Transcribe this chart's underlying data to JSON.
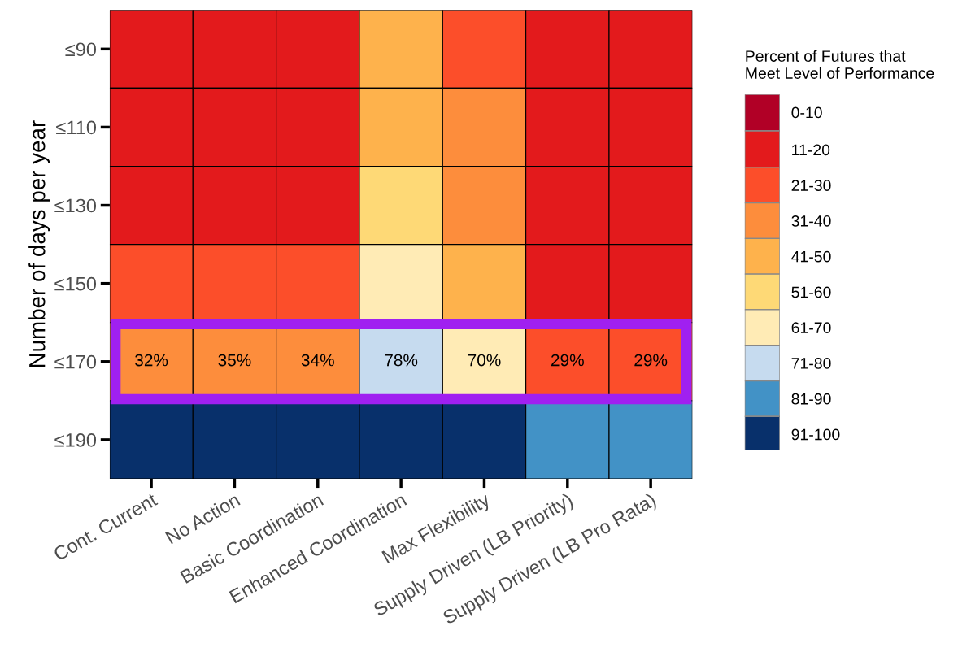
{
  "chart_data": {
    "type": "heatmap",
    "ylabel": "Number of days per year",
    "clabel": "Percent of Futures that\nMeet Level of Performance",
    "categories": [
      "Cont. Current",
      "No Action",
      "Basic Coordination",
      "Enhanced Coordination",
      "Max Flexibility",
      "Supply Driven (LB Priority)",
      "Supply Driven (LB Pro Rata)"
    ],
    "y_categories": [
      "≤90",
      "≤110",
      "≤130",
      "≤150",
      "≤170",
      "≤190"
    ],
    "cells": [
      [
        15.5,
        15.5,
        15.5,
        45.5,
        25.5,
        15.5,
        15.5
      ],
      [
        15.5,
        15.5,
        15.5,
        45.5,
        35.5,
        15.5,
        15.5
      ],
      [
        15.5,
        15.5,
        15.5,
        55.5,
        35.5,
        15.5,
        15.5
      ],
      [
        25.5,
        25.5,
        25.5,
        65.5,
        45.5,
        15.5,
        15.5
      ],
      [
        32,
        35,
        34,
        78,
        70,
        29,
        29
      ],
      [
        95.5,
        95.5,
        95.5,
        95.5,
        95.5,
        85.5,
        85.5
      ]
    ],
    "cell_labels": [
      [
        null,
        null,
        null,
        null,
        null,
        null,
        null
      ],
      [
        null,
        null,
        null,
        null,
        null,
        null,
        null
      ],
      [
        null,
        null,
        null,
        null,
        null,
        null,
        null
      ],
      [
        null,
        null,
        null,
        null,
        null,
        null,
        null
      ],
      [
        "32%",
        "35%",
        "34%",
        "78%",
        "70%",
        "29%",
        "29%"
      ],
      [
        null,
        null,
        null,
        null,
        null,
        null,
        null
      ]
    ],
    "clim": [
      0,
      100
    ],
    "cticks": [
      {
        "value": 5,
        "label": "0-10"
      },
      {
        "value": 15.5,
        "label": "11-20"
      },
      {
        "value": 25.5,
        "label": "21-30"
      },
      {
        "value": 35.5,
        "label": "31-40"
      },
      {
        "value": 45.5,
        "label": "41-50"
      },
      {
        "value": 55.5,
        "label": "51-60"
      },
      {
        "value": 65.5,
        "label": "61-70"
      },
      {
        "value": 75.5,
        "label": "71-80"
      },
      {
        "value": 85.5,
        "label": "81-90"
      },
      {
        "value": 95.5,
        "label": "91-100"
      }
    ],
    "colors": [
      "#b10026",
      "#e31a1c",
      "#fc4e2a",
      "#fd8d3c",
      "#feb24c",
      "#fed976",
      "#ffebb5",
      "#c6dbef",
      "#4292c6",
      "#08306b"
    ]
  }
}
